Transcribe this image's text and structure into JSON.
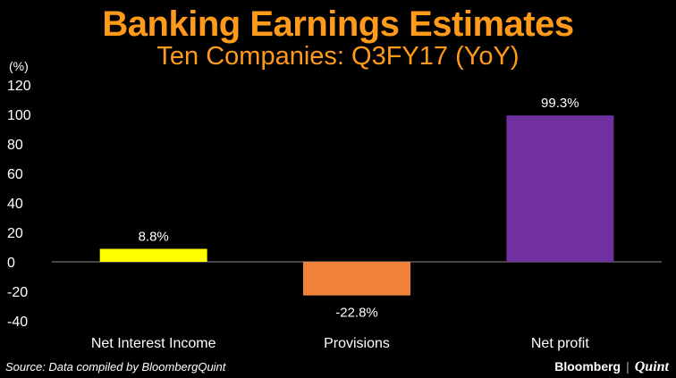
{
  "chart_data": {
    "type": "bar",
    "title": "Banking Earnings Estimates",
    "subtitle": "Ten Companies: Q3FY17 (YoY)",
    "ylabel": "(%)",
    "xlabel": "",
    "ylim": [
      -40,
      120
    ],
    "yticks": [
      120,
      100,
      80,
      60,
      40,
      20,
      0,
      -20,
      -40
    ],
    "ytick_labels": [
      "120",
      "100",
      "80",
      "60",
      "40",
      "20",
      "0",
      "-20",
      "-40"
    ],
    "categories": [
      "Net Interest Income",
      "Provisions",
      "Net profit"
    ],
    "values": [
      8.8,
      -22.8,
      99.3
    ],
    "data_labels": [
      "8.8%",
      "-22.8%",
      "99.3%"
    ],
    "colors": [
      "#ffff00",
      "#f0823a",
      "#7030a0"
    ],
    "grid": false,
    "legend": "none"
  },
  "footer": {
    "source": "Source: Data compiled by BloombergQuint",
    "brand_primary": "Bloomberg",
    "brand_separator": "|",
    "brand_secondary": "Quint"
  }
}
